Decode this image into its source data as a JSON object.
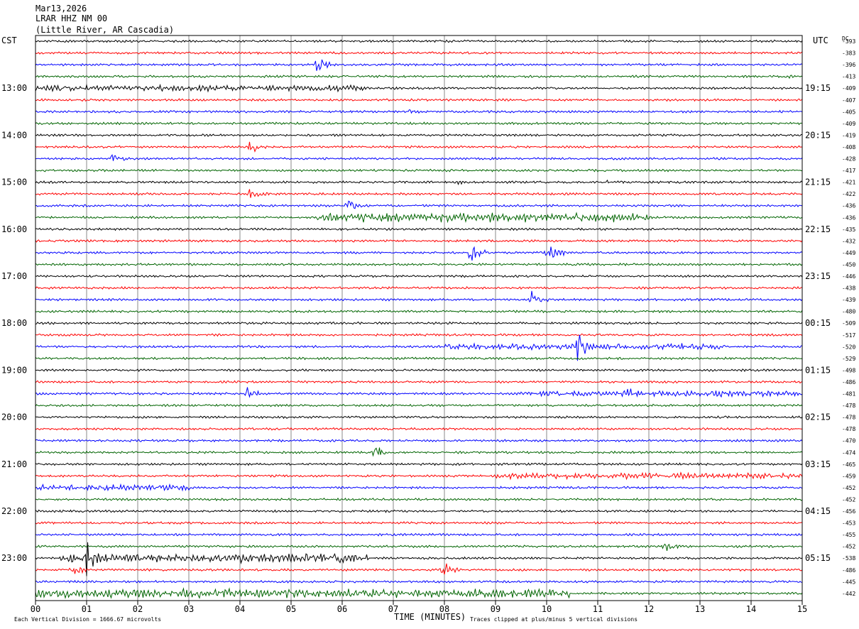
{
  "chart_data": {
    "type": "line",
    "title_lines": [
      "Mar13,2026",
      "LRAR HHZ NM 00",
      "(Little River, AR Cascadia)"
    ],
    "left_timezone": "CST",
    "right_timezone": "UTC",
    "dc_header": "DC",
    "xlabel": "TIME (MINUTES)",
    "x_ticks": [
      "00",
      "01",
      "02",
      "03",
      "04",
      "05",
      "06",
      "07",
      "08",
      "09",
      "10",
      "11",
      "12",
      "13",
      "14",
      "15"
    ],
    "xlim": [
      0,
      15
    ],
    "grid": true,
    "trace_colors": [
      "#000000",
      "#ff0000",
      "#0000ff",
      "#006400"
    ],
    "left_hour_labels": [
      "13:00",
      "14:00",
      "15:00",
      "16:00",
      "17:00",
      "18:00",
      "19:00",
      "20:00",
      "21:00",
      "22:00",
      "23:00"
    ],
    "right_hour_labels": [
      "19:15",
      "20:15",
      "21:15",
      "22:15",
      "23:15",
      "00:15",
      "01:15",
      "02:15",
      "03:15",
      "04:15",
      "05:15"
    ],
    "dc_offsets": [
      -393,
      -383,
      -396,
      -413,
      -409,
      -407,
      -405,
      -409,
      -419,
      -408,
      -428,
      -417,
      -421,
      -422,
      -436,
      -436,
      -435,
      -432,
      -449,
      -450,
      -446,
      -438,
      -439,
      -480,
      -509,
      -517,
      -520,
      -529,
      -498,
      -486,
      -481,
      -478,
      -478,
      -478,
      -470,
      -474,
      -465,
      -459,
      -452,
      -452,
      -456,
      -453,
      -455,
      -452,
      -538,
      -486,
      -445,
      -442
    ],
    "notes": {
      "scale": "Each Vertical Division = 1666.67 microvolts",
      "clip": "Traces clipped at plus/minus 5 vertical divisions"
    },
    "events": [
      {
        "row": 2,
        "minute": 5.5,
        "amp": 10
      },
      {
        "row": 3,
        "minute": 14.7,
        "amp": 4
      },
      {
        "row": 6,
        "minute": 7.3,
        "amp": 4
      },
      {
        "row": 9,
        "minute": 4.2,
        "amp": 9
      },
      {
        "row": 10,
        "minute": 1.5,
        "amp": 8
      },
      {
        "row": 12,
        "minute": 8.2,
        "amp": 4
      },
      {
        "row": 12,
        "minute": 11.1,
        "amp": 4
      },
      {
        "row": 13,
        "minute": 4.2,
        "amp": 9
      },
      {
        "row": 14,
        "minute": 6.1,
        "amp": 10
      },
      {
        "row": 18,
        "minute": 8.5,
        "amp": 14
      },
      {
        "row": 18,
        "minute": 10.0,
        "amp": 16
      },
      {
        "row": 22,
        "minute": 9.7,
        "amp": 11
      },
      {
        "row": 26,
        "minute": 10.6,
        "amp": 18
      },
      {
        "row": 30,
        "minute": 4.1,
        "amp": 10
      },
      {
        "row": 30,
        "minute": 11.6,
        "amp": 10
      },
      {
        "row": 35,
        "minute": 6.6,
        "amp": 13
      },
      {
        "row": 43,
        "minute": 12.3,
        "amp": 10
      },
      {
        "row": 44,
        "minute": 1.0,
        "amp": 22
      },
      {
        "row": 45,
        "minute": 0.7,
        "amp": 10
      },
      {
        "row": 45,
        "minute": 7.95,
        "amp": 13
      }
    ],
    "noisy_segments": [
      {
        "row": 4,
        "from": 0,
        "to": 6.5,
        "amp": 4
      },
      {
        "row": 15,
        "from": 5.5,
        "to": 12,
        "amp": 6
      },
      {
        "row": 26,
        "from": 8,
        "to": 13.5,
        "amp": 4
      },
      {
        "row": 30,
        "from": 9.5,
        "to": 15,
        "amp": 4
      },
      {
        "row": 37,
        "from": 9,
        "to": 15,
        "amp": 4
      },
      {
        "row": 38,
        "from": 0,
        "to": 3,
        "amp": 4
      },
      {
        "row": 44,
        "from": 0.5,
        "to": 6.5,
        "amp": 6
      },
      {
        "row": 47,
        "from": 0,
        "to": 10.5,
        "amp": 6
      }
    ]
  }
}
